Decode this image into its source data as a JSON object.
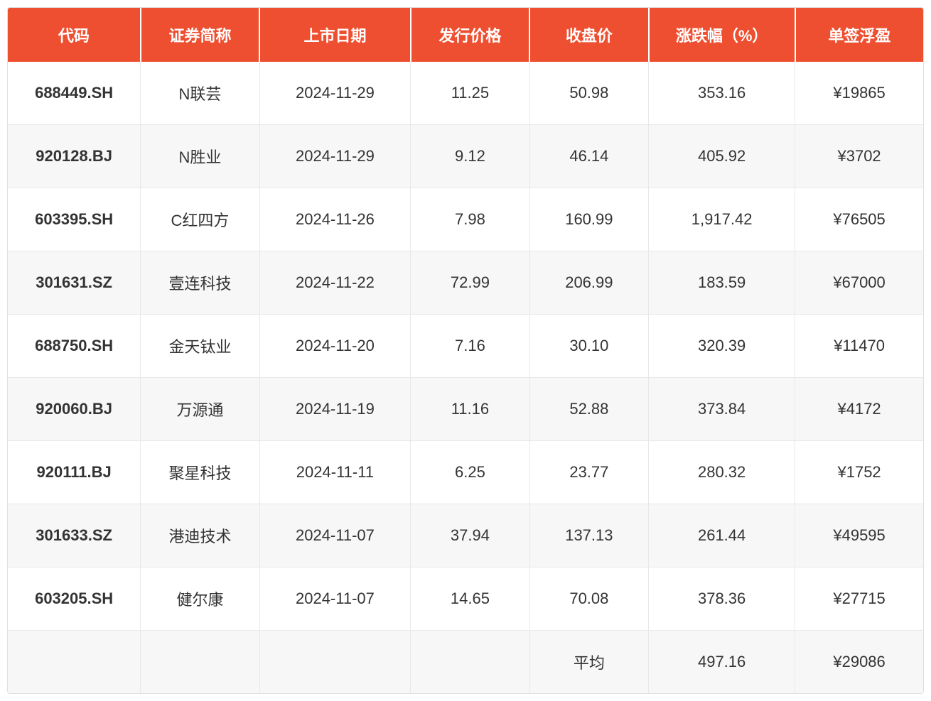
{
  "table": {
    "type": "table",
    "header_bg_color": "#ee4f30",
    "header_text_color": "#ffffff",
    "row_odd_bg": "#ffffff",
    "row_even_bg": "#f7f7f7",
    "border_color": "#e8e8e8",
    "text_color": "#333333",
    "header_fontsize": 22,
    "cell_fontsize": 22,
    "columns": [
      {
        "key": "code",
        "label": "代码",
        "width": "14.5%"
      },
      {
        "key": "name",
        "label": "证券简称",
        "width": "13%"
      },
      {
        "key": "listing_date",
        "label": "上市日期",
        "width": "16.5%"
      },
      {
        "key": "issue_price",
        "label": "发行价格",
        "width": "13%"
      },
      {
        "key": "close_price",
        "label": "收盘价",
        "width": "13%"
      },
      {
        "key": "change_pct",
        "label": "涨跌幅（%）",
        "width": "16%"
      },
      {
        "key": "profit",
        "label": "单签浮盈",
        "width": "14%"
      }
    ],
    "rows": [
      {
        "code": "688449.SH",
        "name": "N联芸",
        "listing_date": "2024-11-29",
        "issue_price": "11.25",
        "close_price": "50.98",
        "change_pct": "353.16",
        "profit": "¥19865"
      },
      {
        "code": "920128.BJ",
        "name": "N胜业",
        "listing_date": "2024-11-29",
        "issue_price": "9.12",
        "close_price": "46.14",
        "change_pct": "405.92",
        "profit": "¥3702"
      },
      {
        "code": "603395.SH",
        "name": "C红四方",
        "listing_date": "2024-11-26",
        "issue_price": "7.98",
        "close_price": "160.99",
        "change_pct": "1,917.42",
        "profit": "¥76505"
      },
      {
        "code": "301631.SZ",
        "name": "壹连科技",
        "listing_date": "2024-11-22",
        "issue_price": "72.99",
        "close_price": "206.99",
        "change_pct": "183.59",
        "profit": "¥67000"
      },
      {
        "code": "688750.SH",
        "name": "金天钛业",
        "listing_date": "2024-11-20",
        "issue_price": "7.16",
        "close_price": "30.10",
        "change_pct": "320.39",
        "profit": "¥11470"
      },
      {
        "code": "920060.BJ",
        "name": "万源通",
        "listing_date": "2024-11-19",
        "issue_price": "11.16",
        "close_price": "52.88",
        "change_pct": "373.84",
        "profit": "¥4172"
      },
      {
        "code": "920111.BJ",
        "name": "聚星科技",
        "listing_date": "2024-11-11",
        "issue_price": "6.25",
        "close_price": "23.77",
        "change_pct": "280.32",
        "profit": "¥1752"
      },
      {
        "code": "301633.SZ",
        "name": "港迪技术",
        "listing_date": "2024-11-07",
        "issue_price": "37.94",
        "close_price": "137.13",
        "change_pct": "261.44",
        "profit": "¥49595"
      },
      {
        "code": "603205.SH",
        "name": "健尔康",
        "listing_date": "2024-11-07",
        "issue_price": "14.65",
        "close_price": "70.08",
        "change_pct": "378.36",
        "profit": "¥27715"
      }
    ],
    "summary": {
      "label": "平均",
      "change_pct": "497.16",
      "profit": "¥29086"
    }
  }
}
